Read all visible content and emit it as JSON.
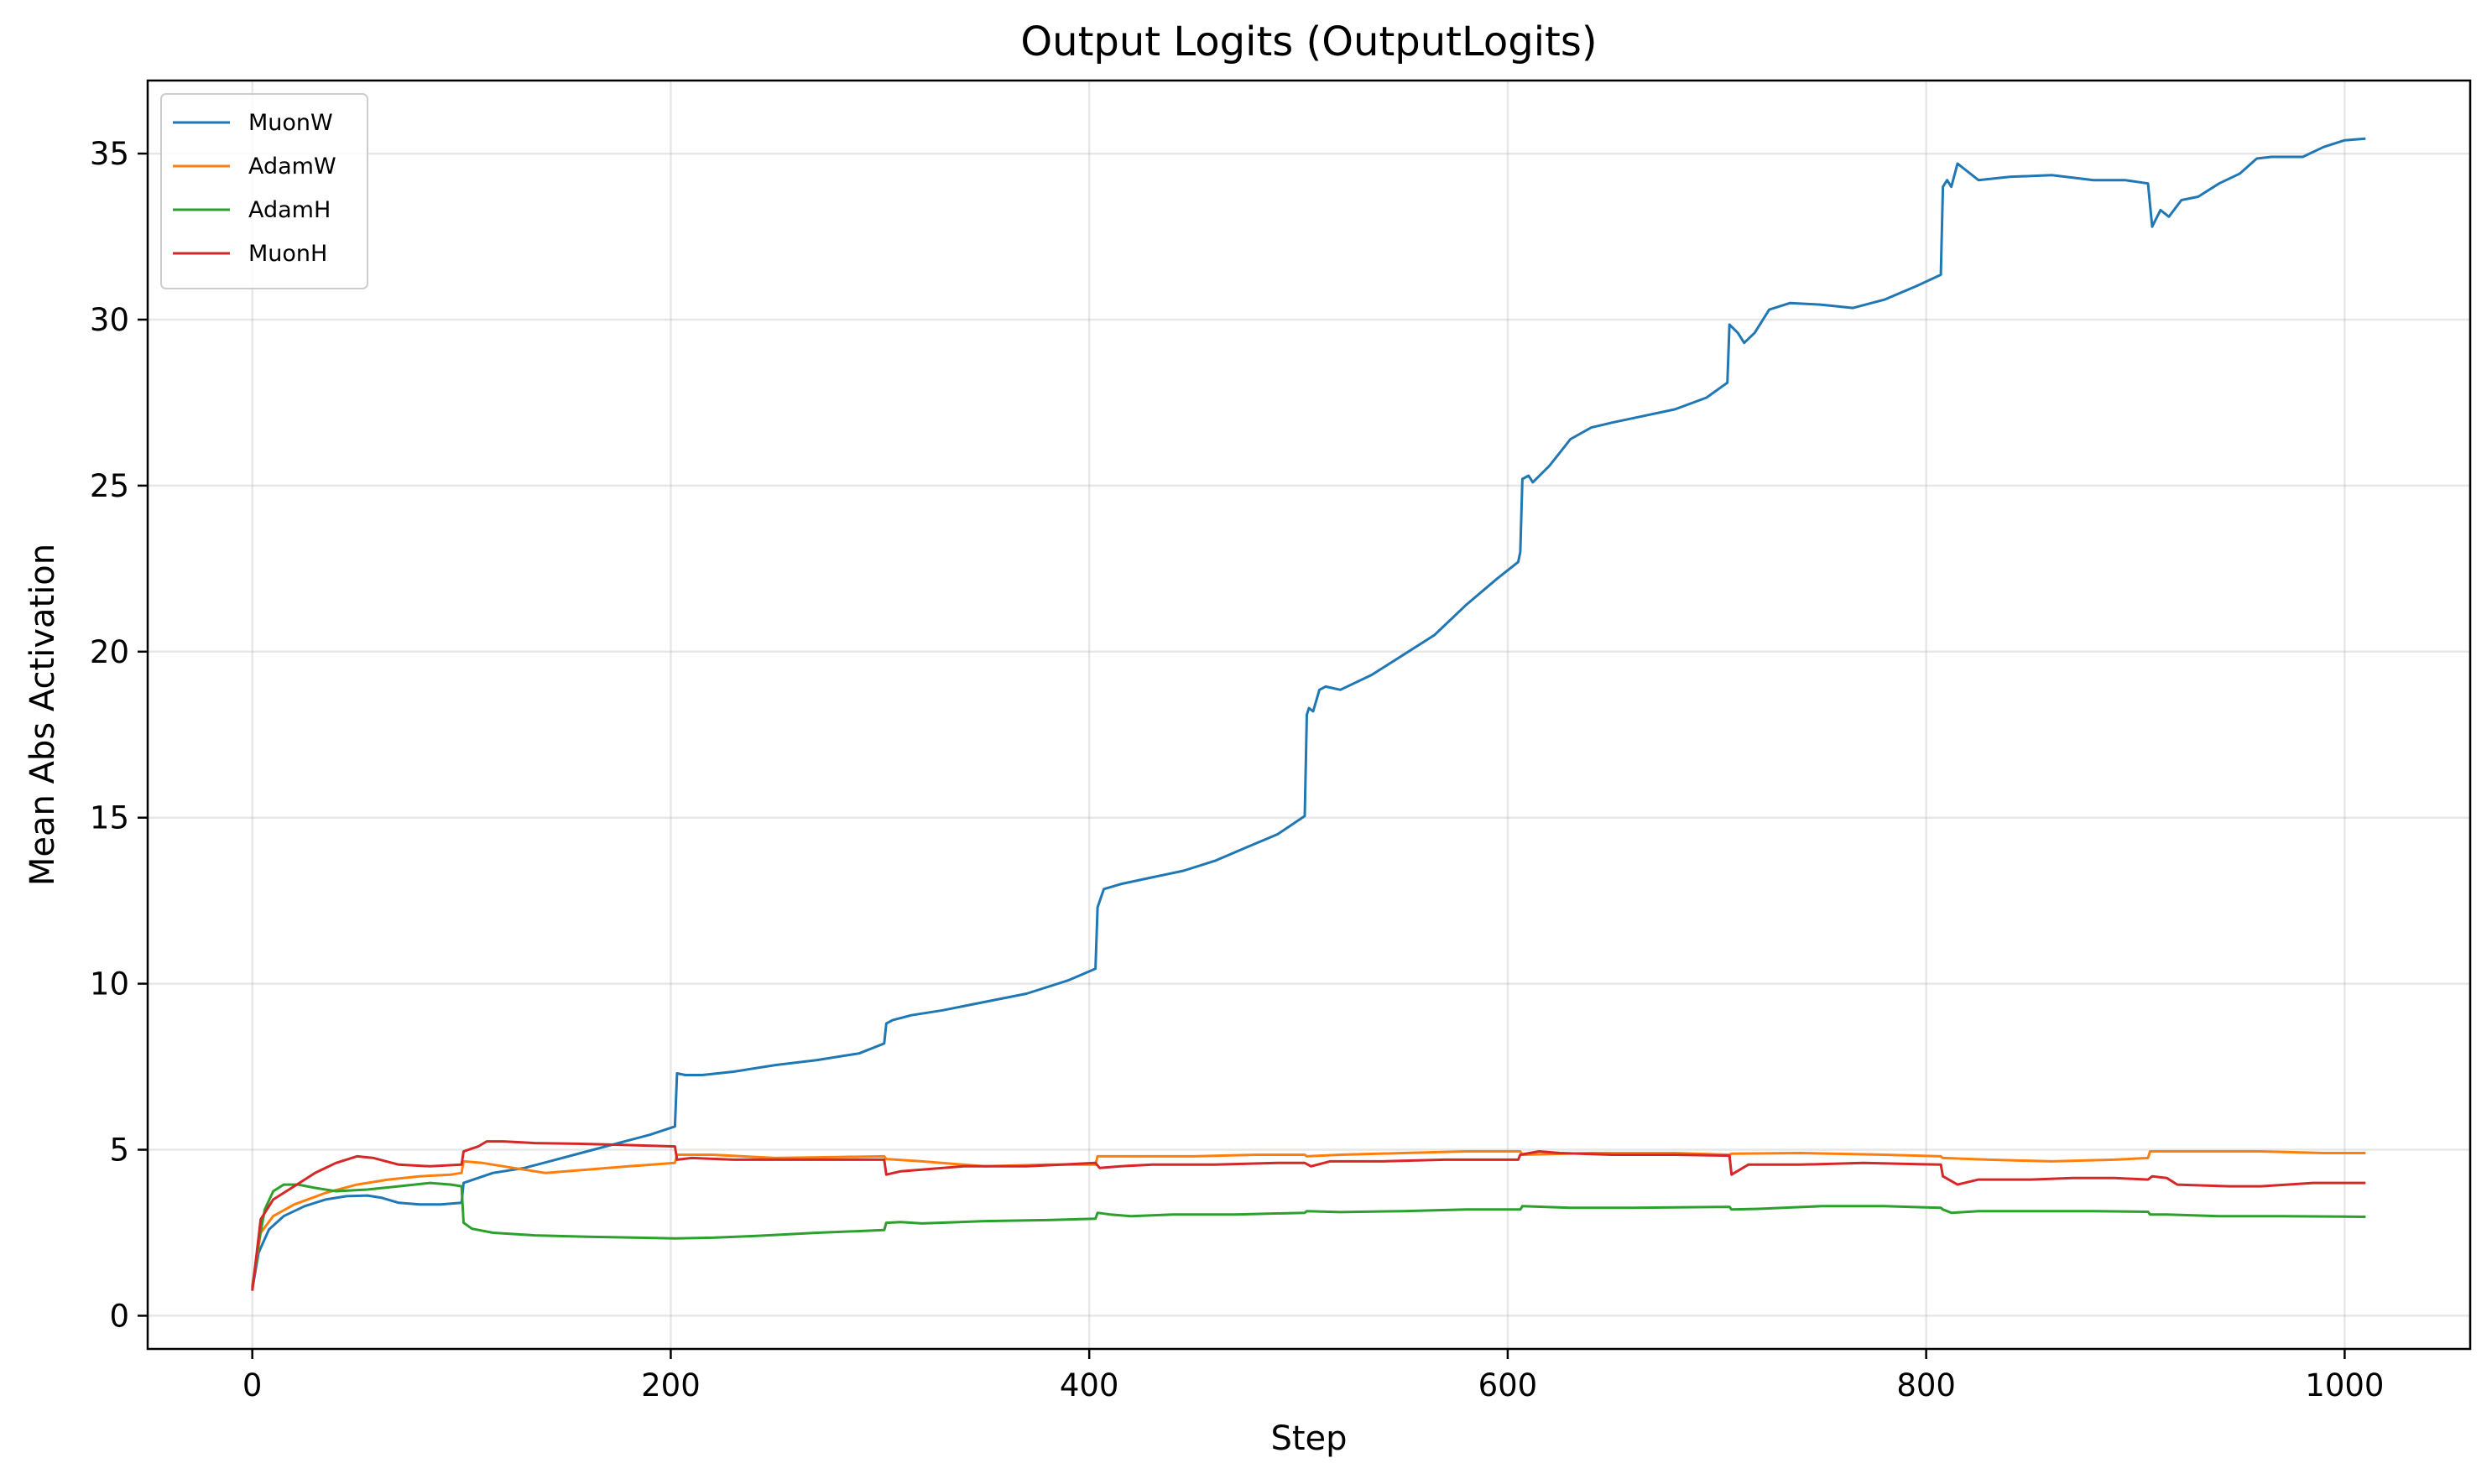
{
  "chart_data": {
    "type": "line",
    "title": "Output Logits (OutputLogits)",
    "xlabel": "Step",
    "ylabel": "Mean Abs Activation",
    "xlim": [
      -50,
      1060
    ],
    "ylim": [
      -1.0,
      37.2
    ],
    "xticks": [
      0,
      200,
      400,
      600,
      800,
      1000
    ],
    "yticks": [
      0,
      5,
      10,
      15,
      20,
      25,
      30,
      35
    ],
    "grid": true,
    "legend_position": "upper-left",
    "series": [
      {
        "name": "MuonW",
        "color": "#1f77b4",
        "points": [
          [
            0,
            0.8
          ],
          [
            3,
            1.9
          ],
          [
            8,
            2.6
          ],
          [
            15,
            3.0
          ],
          [
            25,
            3.3
          ],
          [
            35,
            3.5
          ],
          [
            45,
            3.6
          ],
          [
            55,
            3.62
          ],
          [
            62,
            3.55
          ],
          [
            70,
            3.4
          ],
          [
            80,
            3.35
          ],
          [
            90,
            3.35
          ],
          [
            100,
            3.4
          ],
          [
            101,
            4.0
          ],
          [
            115,
            4.3
          ],
          [
            130,
            4.45
          ],
          [
            145,
            4.7
          ],
          [
            160,
            4.95
          ],
          [
            175,
            5.2
          ],
          [
            190,
            5.45
          ],
          [
            202,
            5.7
          ],
          [
            203,
            7.3
          ],
          [
            207,
            7.25
          ],
          [
            215,
            7.25
          ],
          [
            230,
            7.35
          ],
          [
            250,
            7.55
          ],
          [
            270,
            7.7
          ],
          [
            290,
            7.9
          ],
          [
            302,
            8.2
          ],
          [
            303,
            8.8
          ],
          [
            306,
            8.9
          ],
          [
            315,
            9.05
          ],
          [
            330,
            9.2
          ],
          [
            350,
            9.45
          ],
          [
            370,
            9.7
          ],
          [
            390,
            10.1
          ],
          [
            403,
            10.45
          ],
          [
            404,
            12.3
          ],
          [
            407,
            12.85
          ],
          [
            415,
            13.0
          ],
          [
            430,
            13.2
          ],
          [
            445,
            13.4
          ],
          [
            460,
            13.7
          ],
          [
            475,
            14.1
          ],
          [
            490,
            14.5
          ],
          [
            503,
            15.05
          ],
          [
            504,
            18.1
          ],
          [
            505,
            18.3
          ],
          [
            507,
            18.2
          ],
          [
            510,
            18.85
          ],
          [
            513,
            18.95
          ],
          [
            520,
            18.85
          ],
          [
            535,
            19.3
          ],
          [
            550,
            19.9
          ],
          [
            565,
            20.5
          ],
          [
            580,
            21.4
          ],
          [
            595,
            22.2
          ],
          [
            605,
            22.7
          ],
          [
            606,
            23.0
          ],
          [
            607,
            25.2
          ],
          [
            610,
            25.3
          ],
          [
            612,
            25.1
          ],
          [
            620,
            25.6
          ],
          [
            630,
            26.4
          ],
          [
            640,
            26.75
          ],
          [
            650,
            26.9
          ],
          [
            665,
            27.1
          ],
          [
            680,
            27.3
          ],
          [
            695,
            27.65
          ],
          [
            705,
            28.1
          ],
          [
            706,
            29.85
          ],
          [
            710,
            29.6
          ],
          [
            713,
            29.3
          ],
          [
            718,
            29.6
          ],
          [
            725,
            30.3
          ],
          [
            735,
            30.5
          ],
          [
            750,
            30.45
          ],
          [
            765,
            30.35
          ],
          [
            780,
            30.6
          ],
          [
            795,
            31.0
          ],
          [
            807,
            31.35
          ],
          [
            808,
            34.0
          ],
          [
            810,
            34.2
          ],
          [
            812,
            34.0
          ],
          [
            815,
            34.7
          ],
          [
            825,
            34.2
          ],
          [
            840,
            34.3
          ],
          [
            860,
            34.35
          ],
          [
            880,
            34.2
          ],
          [
            895,
            34.2
          ],
          [
            906,
            34.1
          ],
          [
            908,
            32.8
          ],
          [
            912,
            33.3
          ],
          [
            916,
            33.1
          ],
          [
            922,
            33.6
          ],
          [
            930,
            33.7
          ],
          [
            940,
            34.1
          ],
          [
            950,
            34.4
          ],
          [
            958,
            34.85
          ],
          [
            965,
            34.9
          ],
          [
            980,
            34.9
          ],
          [
            990,
            35.2
          ],
          [
            1000,
            35.4
          ],
          [
            1010,
            35.45
          ]
        ]
      },
      {
        "name": "AdamW",
        "color": "#ff7f0e",
        "points": [
          [
            0,
            0.9
          ],
          [
            4,
            2.5
          ],
          [
            10,
            3.0
          ],
          [
            20,
            3.35
          ],
          [
            35,
            3.7
          ],
          [
            50,
            3.95
          ],
          [
            65,
            4.1
          ],
          [
            80,
            4.2
          ],
          [
            95,
            4.25
          ],
          [
            100,
            4.3
          ],
          [
            101,
            4.65
          ],
          [
            110,
            4.6
          ],
          [
            125,
            4.45
          ],
          [
            140,
            4.3
          ],
          [
            160,
            4.4
          ],
          [
            180,
            4.5
          ],
          [
            202,
            4.6
          ],
          [
            203,
            4.85
          ],
          [
            220,
            4.85
          ],
          [
            250,
            4.75
          ],
          [
            280,
            4.78
          ],
          [
            302,
            4.8
          ],
          [
            303,
            4.72
          ],
          [
            320,
            4.65
          ],
          [
            350,
            4.5
          ],
          [
            380,
            4.55
          ],
          [
            403,
            4.55
          ],
          [
            404,
            4.8
          ],
          [
            420,
            4.8
          ],
          [
            450,
            4.8
          ],
          [
            480,
            4.85
          ],
          [
            503,
            4.85
          ],
          [
            504,
            4.8
          ],
          [
            520,
            4.85
          ],
          [
            550,
            4.9
          ],
          [
            580,
            4.95
          ],
          [
            606,
            4.95
          ],
          [
            607,
            4.85
          ],
          [
            640,
            4.9
          ],
          [
            680,
            4.9
          ],
          [
            706,
            4.85
          ],
          [
            707,
            4.88
          ],
          [
            740,
            4.9
          ],
          [
            780,
            4.85
          ],
          [
            807,
            4.8
          ],
          [
            808,
            4.75
          ],
          [
            830,
            4.7
          ],
          [
            860,
            4.65
          ],
          [
            890,
            4.7
          ],
          [
            906,
            4.75
          ],
          [
            907,
            4.95
          ],
          [
            930,
            4.95
          ],
          [
            960,
            4.95
          ],
          [
            990,
            4.9
          ],
          [
            1010,
            4.9
          ]
        ]
      },
      {
        "name": "AdamH",
        "color": "#2ca02c",
        "points": [
          [
            0,
            0.85
          ],
          [
            3,
            2.2
          ],
          [
            6,
            3.2
          ],
          [
            10,
            3.75
          ],
          [
            15,
            3.95
          ],
          [
            22,
            3.95
          ],
          [
            30,
            3.85
          ],
          [
            40,
            3.75
          ],
          [
            55,
            3.8
          ],
          [
            70,
            3.9
          ],
          [
            85,
            4.0
          ],
          [
            95,
            3.95
          ],
          [
            100,
            3.9
          ],
          [
            101,
            2.8
          ],
          [
            105,
            2.62
          ],
          [
            115,
            2.5
          ],
          [
            135,
            2.42
          ],
          [
            160,
            2.38
          ],
          [
            185,
            2.35
          ],
          [
            202,
            2.33
          ],
          [
            220,
            2.35
          ],
          [
            240,
            2.4
          ],
          [
            270,
            2.5
          ],
          [
            302,
            2.58
          ],
          [
            303,
            2.8
          ],
          [
            310,
            2.82
          ],
          [
            320,
            2.78
          ],
          [
            350,
            2.85
          ],
          [
            380,
            2.88
          ],
          [
            403,
            2.92
          ],
          [
            404,
            3.1
          ],
          [
            410,
            3.05
          ],
          [
            420,
            3.0
          ],
          [
            440,
            3.05
          ],
          [
            470,
            3.05
          ],
          [
            503,
            3.1
          ],
          [
            504,
            3.15
          ],
          [
            520,
            3.12
          ],
          [
            550,
            3.15
          ],
          [
            580,
            3.2
          ],
          [
            606,
            3.2
          ],
          [
            607,
            3.3
          ],
          [
            630,
            3.25
          ],
          [
            660,
            3.25
          ],
          [
            706,
            3.28
          ],
          [
            707,
            3.2
          ],
          [
            720,
            3.22
          ],
          [
            750,
            3.3
          ],
          [
            780,
            3.3
          ],
          [
            807,
            3.25
          ],
          [
            808,
            3.2
          ],
          [
            812,
            3.1
          ],
          [
            825,
            3.15
          ],
          [
            850,
            3.15
          ],
          [
            880,
            3.15
          ],
          [
            906,
            3.13
          ],
          [
            907,
            3.05
          ],
          [
            915,
            3.05
          ],
          [
            940,
            3.0
          ],
          [
            970,
            3.0
          ],
          [
            1010,
            2.98
          ]
        ]
      },
      {
        "name": "MuonH",
        "color": "#d62728",
        "points": [
          [
            0,
            0.75
          ],
          [
            4,
            2.9
          ],
          [
            10,
            3.5
          ],
          [
            20,
            3.9
          ],
          [
            30,
            4.3
          ],
          [
            40,
            4.6
          ],
          [
            50,
            4.8
          ],
          [
            58,
            4.75
          ],
          [
            70,
            4.55
          ],
          [
            85,
            4.5
          ],
          [
            100,
            4.55
          ],
          [
            101,
            4.95
          ],
          [
            108,
            5.1
          ],
          [
            112,
            5.25
          ],
          [
            120,
            5.25
          ],
          [
            135,
            5.2
          ],
          [
            155,
            5.18
          ],
          [
            175,
            5.15
          ],
          [
            202,
            5.1
          ],
          [
            203,
            4.7
          ],
          [
            210,
            4.75
          ],
          [
            230,
            4.7
          ],
          [
            260,
            4.7
          ],
          [
            302,
            4.7
          ],
          [
            303,
            4.25
          ],
          [
            310,
            4.35
          ],
          [
            320,
            4.4
          ],
          [
            340,
            4.5
          ],
          [
            370,
            4.5
          ],
          [
            403,
            4.6
          ],
          [
            405,
            4.45
          ],
          [
            415,
            4.5
          ],
          [
            430,
            4.55
          ],
          [
            460,
            4.55
          ],
          [
            490,
            4.6
          ],
          [
            503,
            4.6
          ],
          [
            506,
            4.5
          ],
          [
            515,
            4.65
          ],
          [
            540,
            4.65
          ],
          [
            570,
            4.7
          ],
          [
            605,
            4.7
          ],
          [
            606,
            4.85
          ],
          [
            615,
            4.95
          ],
          [
            625,
            4.9
          ],
          [
            650,
            4.85
          ],
          [
            680,
            4.85
          ],
          [
            706,
            4.82
          ],
          [
            707,
            4.25
          ],
          [
            715,
            4.55
          ],
          [
            740,
            4.55
          ],
          [
            770,
            4.6
          ],
          [
            807,
            4.55
          ],
          [
            808,
            4.2
          ],
          [
            815,
            3.95
          ],
          [
            825,
            4.1
          ],
          [
            850,
            4.1
          ],
          [
            870,
            4.15
          ],
          [
            890,
            4.15
          ],
          [
            906,
            4.1
          ],
          [
            908,
            4.2
          ],
          [
            915,
            4.15
          ],
          [
            920,
            3.95
          ],
          [
            945,
            3.9
          ],
          [
            960,
            3.9
          ],
          [
            985,
            4.0
          ],
          [
            1010,
            4.0
          ]
        ]
      }
    ]
  }
}
